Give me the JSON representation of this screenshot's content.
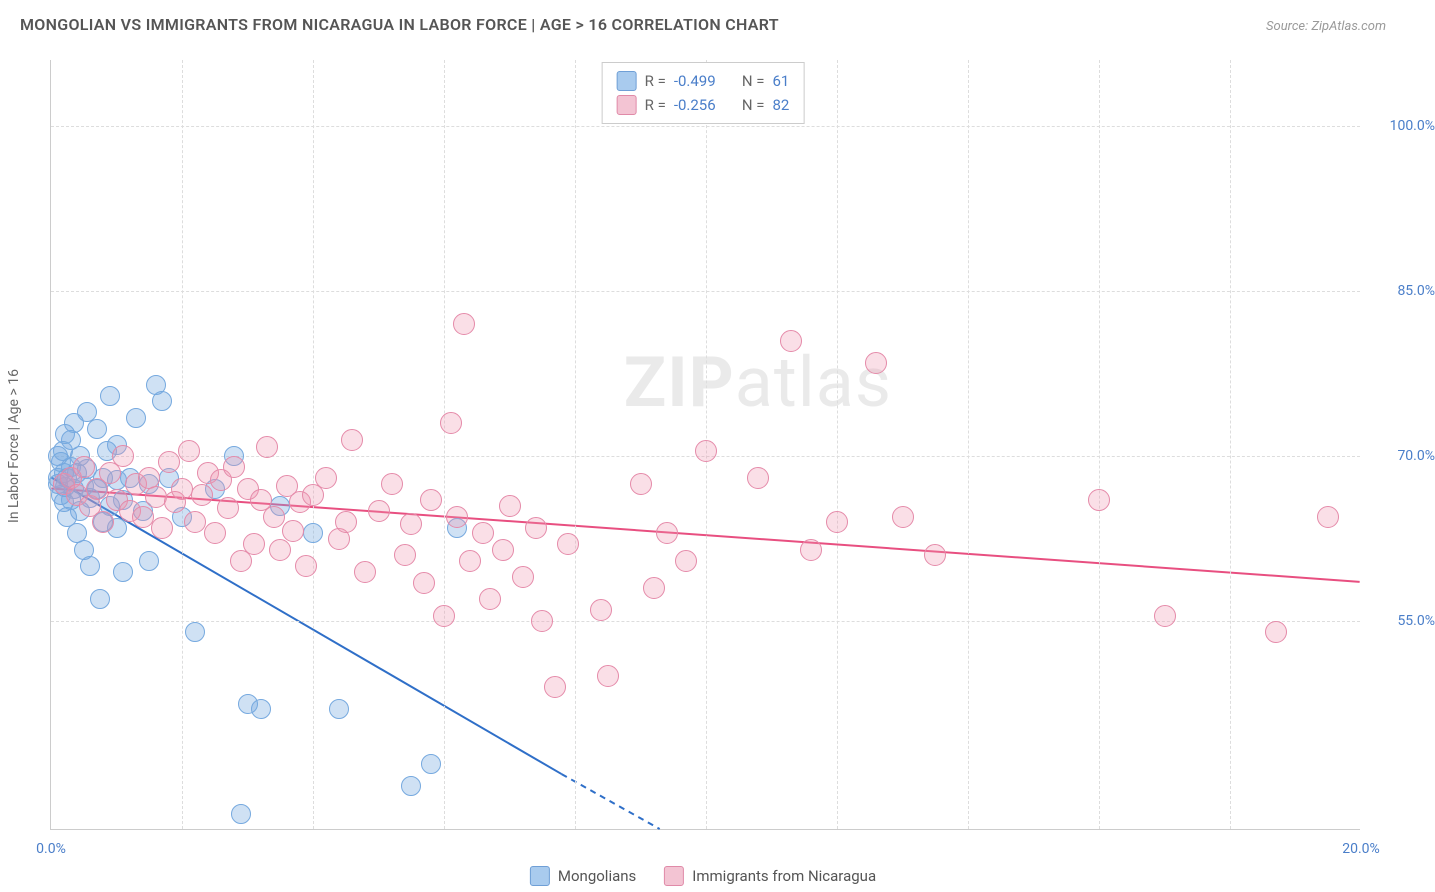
{
  "title": "MONGOLIAN VS IMMIGRANTS FROM NICARAGUA IN LABOR FORCE | AGE > 16 CORRELATION CHART",
  "source_label": "Source: ",
  "source_name": "ZipAtlas.com",
  "y_axis_label": "In Labor Force | Age > 16",
  "watermark_a": "ZIP",
  "watermark_b": "atlas",
  "chart": {
    "type": "scatter",
    "background_color": "#ffffff",
    "grid_color": "#dddddd",
    "axis_color": "#cccccc",
    "text_color": "#555555",
    "value_color": "#4a7ec9",
    "xlim": [
      0.0,
      20.0
    ],
    "ylim": [
      36.0,
      106.0
    ],
    "yticks": [
      {
        "v": 55.0,
        "label": "55.0%"
      },
      {
        "v": 70.0,
        "label": "70.0%"
      },
      {
        "v": 85.0,
        "label": "85.0%"
      },
      {
        "v": 100.0,
        "label": "100.0%"
      }
    ],
    "xticks": [
      {
        "v": 0.0,
        "label": "0.0%"
      },
      {
        "v": 20.0,
        "label": "20.0%"
      }
    ],
    "xgrid": [
      2,
      4,
      6,
      8,
      10,
      12,
      14,
      16,
      18
    ]
  },
  "series": [
    {
      "name": "Mongolians",
      "fill": "rgba(118,169,223,0.35)",
      "stroke": "#76a9df",
      "swatch_fill": "#a9cbee",
      "swatch_stroke": "#6f9fd6",
      "R": "-0.499",
      "N": "61",
      "marker_radius": 10,
      "trend": {
        "x1": 0.0,
        "y1": 68.0,
        "x2": 7.8,
        "y2": 41.0,
        "extrap_x2": 9.3,
        "extrap_y2": 36.0,
        "color": "#2f6fc8",
        "width": 2
      },
      "points": [
        [
          0.1,
          67.5
        ],
        [
          0.1,
          68.0
        ],
        [
          0.1,
          70.0
        ],
        [
          0.15,
          66.5
        ],
        [
          0.15,
          69.5
        ],
        [
          0.18,
          70.5
        ],
        [
          0.2,
          65.8
        ],
        [
          0.2,
          68.5
        ],
        [
          0.22,
          67.2
        ],
        [
          0.22,
          72.0
        ],
        [
          0.25,
          68.0
        ],
        [
          0.25,
          64.5
        ],
        [
          0.3,
          66.0
        ],
        [
          0.3,
          69.0
        ],
        [
          0.3,
          71.5
        ],
        [
          0.35,
          67.0
        ],
        [
          0.35,
          73.0
        ],
        [
          0.4,
          68.5
        ],
        [
          0.4,
          63.0
        ],
        [
          0.45,
          70.0
        ],
        [
          0.45,
          65.0
        ],
        [
          0.5,
          67.3
        ],
        [
          0.5,
          61.5
        ],
        [
          0.55,
          68.8
        ],
        [
          0.55,
          74.0
        ],
        [
          0.6,
          66.2
        ],
        [
          0.6,
          60.0
        ],
        [
          0.7,
          67.0
        ],
        [
          0.7,
          72.5
        ],
        [
          0.75,
          57.0
        ],
        [
          0.8,
          68.0
        ],
        [
          0.8,
          64.0
        ],
        [
          0.85,
          70.5
        ],
        [
          0.9,
          65.5
        ],
        [
          0.9,
          75.5
        ],
        [
          1.0,
          63.5
        ],
        [
          1.0,
          67.8
        ],
        [
          1.0,
          71.0
        ],
        [
          1.1,
          66.0
        ],
        [
          1.1,
          59.5
        ],
        [
          1.2,
          68.0
        ],
        [
          1.3,
          73.5
        ],
        [
          1.4,
          65.0
        ],
        [
          1.5,
          67.5
        ],
        [
          1.5,
          60.5
        ],
        [
          1.7,
          75.0
        ],
        [
          1.8,
          68.0
        ],
        [
          2.0,
          64.5
        ],
        [
          2.2,
          54.0
        ],
        [
          2.5,
          67.0
        ],
        [
          2.8,
          70.0
        ],
        [
          3.0,
          47.5
        ],
        [
          3.5,
          65.5
        ],
        [
          3.2,
          47.0
        ],
        [
          4.0,
          63.0
        ],
        [
          4.4,
          47.0
        ],
        [
          5.5,
          40.0
        ],
        [
          5.8,
          42.0
        ],
        [
          6.2,
          63.5
        ],
        [
          2.9,
          37.5
        ],
        [
          1.6,
          76.5
        ]
      ]
    },
    {
      "name": "Immigrants from Nicaragua",
      "fill": "rgba(238,149,177,0.30)",
      "stroke": "#e58aa9",
      "swatch_fill": "#f3c4d3",
      "swatch_stroke": "#e08aa8",
      "R": "-0.256",
      "N": "82",
      "marker_radius": 11,
      "trend": {
        "x1": 0.0,
        "y1": 67.0,
        "x2": 20.0,
        "y2": 58.5,
        "color": "#e84f80",
        "width": 2
      },
      "points": [
        [
          0.2,
          67.5
        ],
        [
          0.3,
          68.0
        ],
        [
          0.4,
          66.5
        ],
        [
          0.5,
          69.0
        ],
        [
          0.6,
          65.5
        ],
        [
          0.7,
          67.0
        ],
        [
          0.8,
          64.0
        ],
        [
          0.9,
          68.5
        ],
        [
          1.0,
          66.0
        ],
        [
          1.1,
          70.0
        ],
        [
          1.2,
          65.0
        ],
        [
          1.3,
          67.5
        ],
        [
          1.4,
          64.5
        ],
        [
          1.5,
          68.0
        ],
        [
          1.6,
          66.3
        ],
        [
          1.7,
          63.5
        ],
        [
          1.8,
          69.5
        ],
        [
          1.9,
          65.8
        ],
        [
          2.0,
          67.0
        ],
        [
          2.1,
          70.5
        ],
        [
          2.2,
          64.0
        ],
        [
          2.3,
          66.5
        ],
        [
          2.4,
          68.5
        ],
        [
          2.5,
          63.0
        ],
        [
          2.6,
          67.8
        ],
        [
          2.7,
          65.3
        ],
        [
          2.8,
          69.0
        ],
        [
          2.9,
          60.5
        ],
        [
          3.0,
          67.0
        ],
        [
          3.1,
          62.0
        ],
        [
          3.2,
          66.0
        ],
        [
          3.3,
          70.8
        ],
        [
          3.4,
          64.5
        ],
        [
          3.5,
          61.5
        ],
        [
          3.6,
          67.3
        ],
        [
          3.7,
          63.2
        ],
        [
          3.8,
          65.8
        ],
        [
          3.9,
          60.0
        ],
        [
          4.0,
          66.5
        ],
        [
          4.2,
          68.0
        ],
        [
          4.4,
          62.5
        ],
        [
          4.5,
          64.0
        ],
        [
          4.6,
          71.5
        ],
        [
          4.8,
          59.5
        ],
        [
          5.0,
          65.0
        ],
        [
          5.2,
          67.5
        ],
        [
          5.4,
          61.0
        ],
        [
          5.5,
          63.8
        ],
        [
          5.7,
          58.5
        ],
        [
          5.8,
          66.0
        ],
        [
          6.0,
          55.5
        ],
        [
          6.1,
          73.0
        ],
        [
          6.2,
          64.5
        ],
        [
          6.3,
          82.0
        ],
        [
          6.4,
          60.5
        ],
        [
          6.6,
          63.0
        ],
        [
          6.7,
          57.0
        ],
        [
          6.9,
          61.5
        ],
        [
          7.0,
          65.5
        ],
        [
          7.2,
          59.0
        ],
        [
          7.4,
          63.5
        ],
        [
          7.5,
          55.0
        ],
        [
          7.7,
          49.0
        ],
        [
          7.9,
          62.0
        ],
        [
          8.4,
          56.0
        ],
        [
          8.5,
          50.0
        ],
        [
          9.0,
          67.5
        ],
        [
          9.4,
          63.0
        ],
        [
          9.7,
          60.5
        ],
        [
          10.8,
          68.0
        ],
        [
          11.3,
          80.5
        ],
        [
          11.6,
          61.5
        ],
        [
          12.0,
          64.0
        ],
        [
          12.6,
          78.5
        ],
        [
          13.0,
          64.5
        ],
        [
          13.5,
          61.0
        ],
        [
          16.0,
          66.0
        ],
        [
          17.0,
          55.5
        ],
        [
          18.7,
          54.0
        ],
        [
          19.5,
          64.5
        ],
        [
          10.0,
          70.5
        ],
        [
          9.2,
          58.0
        ]
      ]
    }
  ],
  "legend_top": {
    "r_label": "R =",
    "n_label": "N ="
  }
}
